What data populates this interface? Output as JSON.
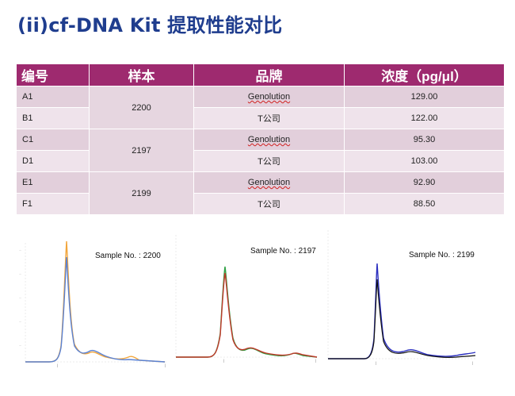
{
  "title": "(ii)cf-DNA Kit 提取性能对比",
  "table": {
    "headers": [
      "编号",
      "样本",
      "品牌",
      "浓度（pg/μl）"
    ],
    "rows": [
      {
        "id": "A1",
        "sample": "2200",
        "brand": "Genolution",
        "conc": "129.00"
      },
      {
        "id": "B1",
        "sample": "",
        "brand": "T公司",
        "conc": "122.00"
      },
      {
        "id": "C1",
        "sample": "2197",
        "brand": "Genolution",
        "conc": "95.30"
      },
      {
        "id": "D1",
        "sample": "",
        "brand": "T公司",
        "conc": "103.00"
      },
      {
        "id": "E1",
        "sample": "2199",
        "brand": "Genolution",
        "conc": "92.90"
      },
      {
        "id": "F1",
        "sample": "",
        "brand": "T公司",
        "conc": "88.50"
      }
    ]
  },
  "graphs": [
    {
      "label": "Sample No. : 2200",
      "colors": [
        "#f2a53a",
        "#5a82d4"
      ]
    },
    {
      "label": "Sample No. : 2197",
      "colors": [
        "#2ea043",
        "#c0392b"
      ]
    },
    {
      "label": "Sample No. : 2199",
      "colors": [
        "#2b2fbf",
        "#111111"
      ]
    }
  ]
}
